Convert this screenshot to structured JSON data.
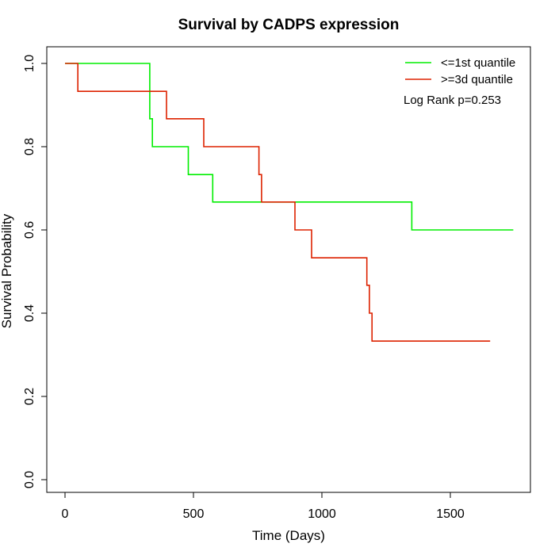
{
  "chart_data": {
    "type": "line",
    "subtype": "kaplan-meier-step",
    "title": "Survival by CADPS expression",
    "xlabel": "Time (Days)",
    "ylabel": "Survival Probability",
    "xlim": [
      0,
      1750
    ],
    "ylim": [
      0,
      1
    ],
    "xticks": [
      0,
      500,
      1000,
      1500
    ],
    "xtick_labels": [
      "0",
      "500",
      "1000",
      "1500"
    ],
    "yticks": [
      0,
      0.2,
      0.4,
      0.6,
      0.8,
      1
    ],
    "ytick_labels": [
      "0.0",
      "0.2",
      "0.4",
      "0.6",
      "0.8",
      "1.0"
    ],
    "grid": false,
    "legend_position": "top-right",
    "annotation": "Log Rank p=0.253",
    "series": [
      {
        "name": "<=1st quantile",
        "color": "#00ee00",
        "points": [
          [
            0,
            1.0
          ],
          [
            330,
            1.0
          ],
          [
            330,
            0.867
          ],
          [
            340,
            0.867
          ],
          [
            340,
            0.8
          ],
          [
            480,
            0.8
          ],
          [
            480,
            0.733
          ],
          [
            575,
            0.733
          ],
          [
            575,
            0.667
          ],
          [
            1350,
            0.667
          ],
          [
            1350,
            0.6
          ],
          [
            1745,
            0.6
          ]
        ]
      },
      {
        "name": ">=3d quantile",
        "color": "#dd2200",
        "points": [
          [
            0,
            1.0
          ],
          [
            50,
            1.0
          ],
          [
            50,
            0.933
          ],
          [
            395,
            0.933
          ],
          [
            395,
            0.867
          ],
          [
            540,
            0.867
          ],
          [
            540,
            0.8
          ],
          [
            755,
            0.8
          ],
          [
            755,
            0.733
          ],
          [
            765,
            0.733
          ],
          [
            765,
            0.667
          ],
          [
            895,
            0.667
          ],
          [
            895,
            0.6
          ],
          [
            960,
            0.6
          ],
          [
            960,
            0.533
          ],
          [
            1175,
            0.533
          ],
          [
            1175,
            0.467
          ],
          [
            1185,
            0.467
          ],
          [
            1185,
            0.4
          ],
          [
            1195,
            0.4
          ],
          [
            1195,
            0.333
          ],
          [
            1655,
            0.333
          ]
        ]
      }
    ]
  }
}
